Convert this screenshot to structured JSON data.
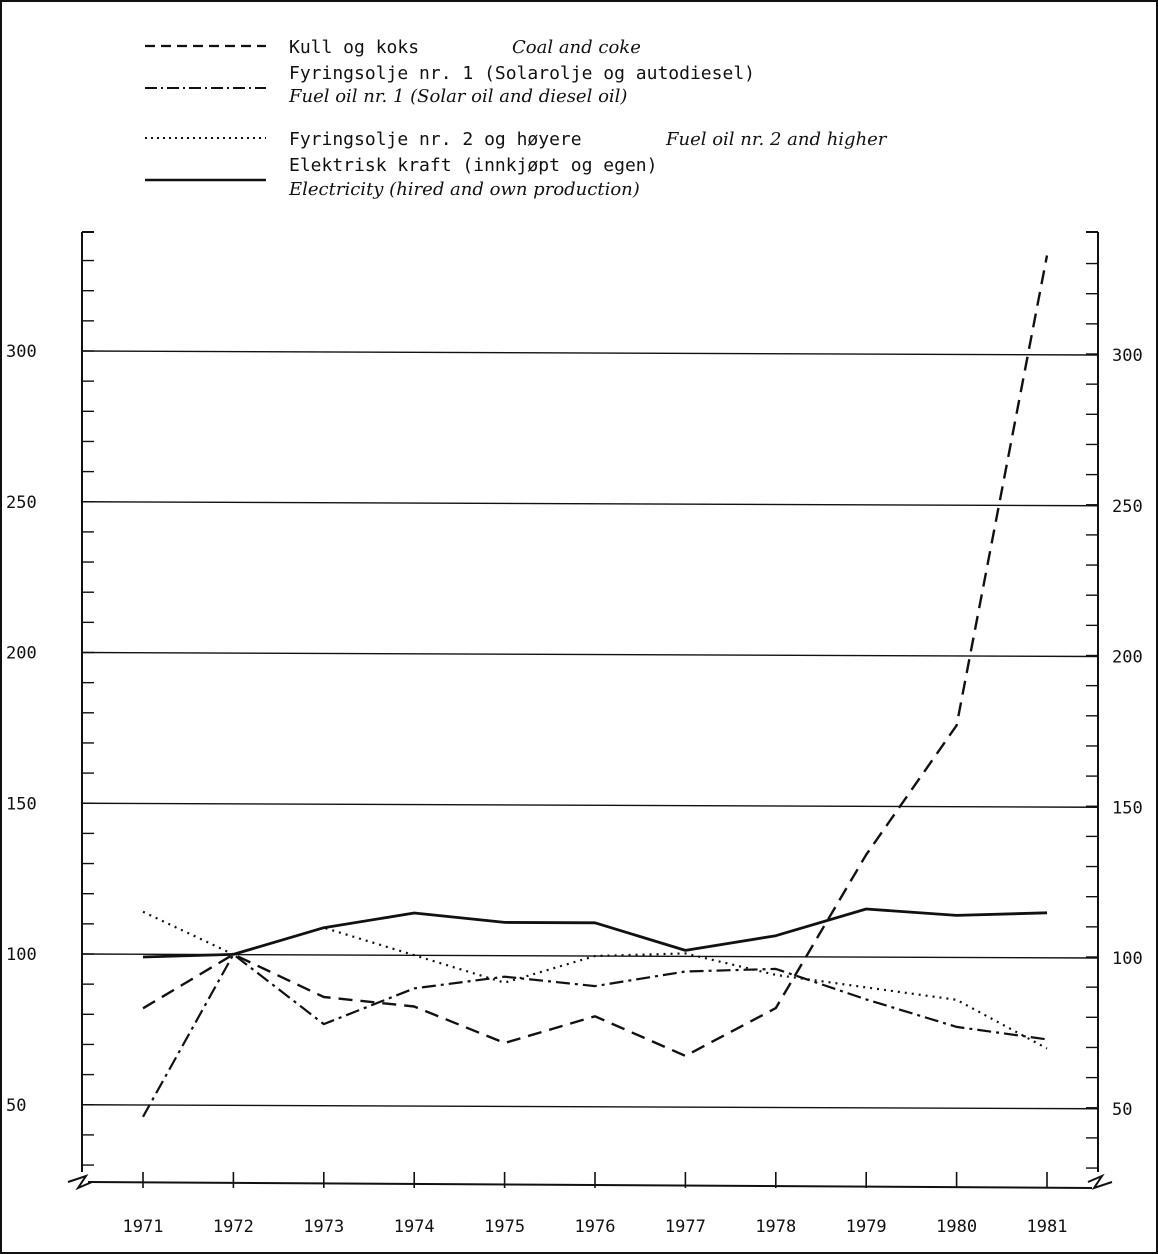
{
  "chart_data": {
    "type": "line",
    "title": "",
    "xlabel": "",
    "ylabel": "",
    "x": [
      1971,
      1972,
      1973,
      1974,
      1975,
      1976,
      1977,
      1978,
      1979,
      1980,
      1981
    ],
    "x_tick_labels": [
      "1971",
      "1972",
      "1973",
      "1974",
      "1975",
      "1976",
      "1977",
      "1978",
      "1979",
      "1980",
      "1981"
    ],
    "ylim": [
      25,
      340
    ],
    "y_tick_labels": [
      "50",
      "100",
      "150",
      "200",
      "250",
      "300"
    ],
    "y_tick_values": [
      50,
      100,
      150,
      200,
      250,
      300
    ],
    "minor_tick_step": 10,
    "grid": true,
    "axis_break": true,
    "legend_position": "top",
    "series": [
      {
        "name": "Kull og koks",
        "name_en": "Coal and coke",
        "style": "dashed",
        "values": [
          82,
          100,
          86,
          83,
          71,
          80,
          67,
          83,
          134,
          177,
          333
        ]
      },
      {
        "name": "Fyringsolje nr. 1 (Solarolje og autodiesel)",
        "name_en": "Fuel oil nr. 1 (Solar oil and diesel oil)",
        "style": "dashdot",
        "values": [
          46,
          100,
          77,
          89,
          93,
          90,
          95,
          96,
          86,
          77,
          73
        ]
      },
      {
        "name": "Fyringsolje nr. 2 og høyere",
        "name_en": "Fuel oil nr. 2 and higher",
        "style": "dotted",
        "values": [
          114,
          100,
          109,
          100,
          91,
          100,
          101,
          94,
          90,
          86,
          70
        ]
      },
      {
        "name": "Elektrisk kraft (innkjøpt og egen)",
        "name_en": "Electricity (hired and own production)",
        "style": "solid",
        "values": [
          99,
          100,
          109,
          114,
          111,
          111,
          102,
          107,
          116,
          114,
          115
        ]
      }
    ]
  }
}
